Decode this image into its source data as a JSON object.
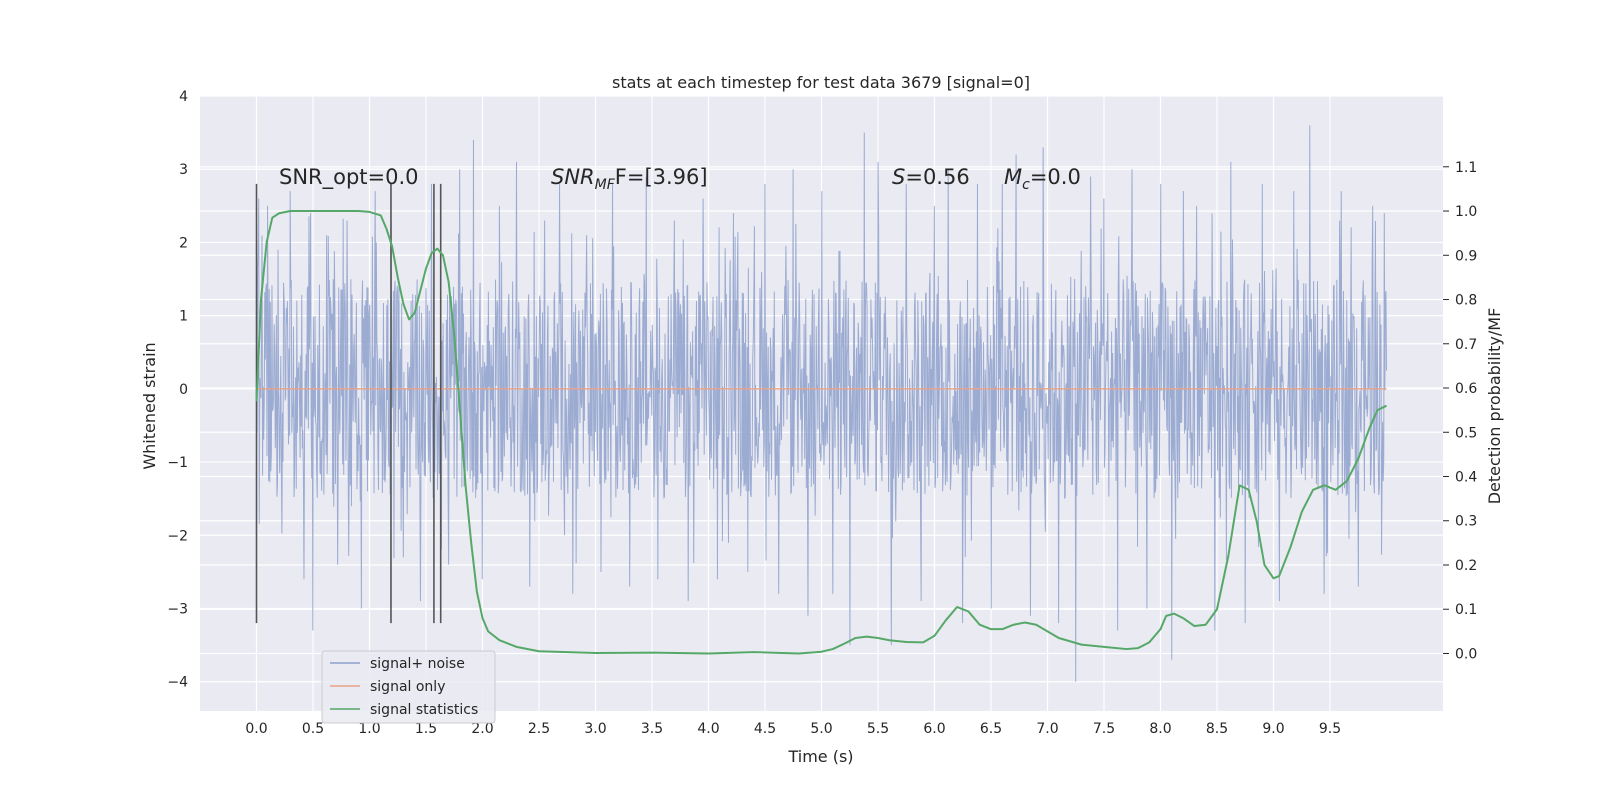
{
  "chart_data": {
    "type": "line",
    "title": "stats at each timestep for test data 3679 [signal=0]",
    "xlabel": "Time (s)",
    "ylabel": "Whitened strain",
    "y2label": "Detection probability/MF",
    "xlim": [
      -0.5,
      10.5
    ],
    "ylim": [
      -4.4,
      4.0
    ],
    "y2lim": [
      -0.13,
      1.26
    ],
    "x_ticks": [
      0.0,
      0.5,
      1.0,
      1.5,
      2.0,
      2.5,
      3.0,
      3.5,
      4.0,
      4.5,
      5.0,
      5.5,
      6.0,
      6.5,
      7.0,
      7.5,
      8.0,
      8.5,
      9.0,
      9.5
    ],
    "x_tick_labels": [
      "0.0",
      "0.5",
      "1.0",
      "1.5",
      "2.0",
      "2.5",
      "3.0",
      "3.5",
      "4.0",
      "4.5",
      "5.0",
      "5.5",
      "6.0",
      "6.5",
      "7.0",
      "7.5",
      "8.0",
      "8.5",
      "9.0",
      "9.5"
    ],
    "y_ticks": [
      4,
      3,
      2,
      1,
      0,
      -1,
      -2,
      -3,
      -4
    ],
    "y_tick_labels": [
      "4",
      "3",
      "2",
      "1",
      "0",
      "−1",
      "−2",
      "−3",
      "−4"
    ],
    "y2_ticks": [
      1.1,
      1.0,
      0.9,
      0.8,
      0.7,
      0.6,
      0.5,
      0.4,
      0.3,
      0.2,
      0.1,
      0.0
    ],
    "y2_tick_labels": [
      "1.1",
      "1.0",
      "0.9",
      "0.8",
      "0.7",
      "0.6",
      "0.5",
      "0.4",
      "0.3",
      "0.2",
      "0.1",
      "0.0"
    ],
    "grid": true,
    "legend_position": "lower-left",
    "annotations": {
      "snr_opt": "SNR_opt=0.0",
      "snr_mf_main": "SNR",
      "snr_mf_sub": "MF",
      "snr_mf_rest": "F=[3.96]",
      "s_main": "S",
      "s_rest": "=0.56",
      "mc_main": "M",
      "mc_sub": "c",
      "mc_rest": "=0.0"
    },
    "series": [
      {
        "name": "signal+ noise",
        "color": "#8da0cb",
        "axis": "left",
        "x_range": [
          0.0,
          10.0
        ],
        "points": 2048,
        "core_band": [
          -1.5,
          1.5
        ],
        "spike_peaks": [
          [
            0.02,
            2.6
          ],
          [
            0.1,
            2.5
          ],
          [
            0.19,
            1.9
          ],
          [
            0.3,
            2.7
          ],
          [
            0.42,
            -2.6
          ],
          [
            0.48,
            2.4
          ],
          [
            0.5,
            -3.3
          ],
          [
            0.62,
            2.1
          ],
          [
            0.72,
            -2.4
          ],
          [
            0.8,
            2.3
          ],
          [
            0.93,
            -3.0
          ],
          [
            1.05,
            2.7
          ],
          [
            1.19,
            2.3
          ],
          [
            1.3,
            -2.3
          ],
          [
            1.45,
            -2.9
          ],
          [
            1.55,
            2.8
          ],
          [
            1.7,
            -2.4
          ],
          [
            1.8,
            3.0
          ],
          [
            1.92,
            3.4
          ],
          [
            2.0,
            -2.6
          ],
          [
            2.15,
            2.5
          ],
          [
            2.3,
            3.1
          ],
          [
            2.42,
            -2.7
          ],
          [
            2.55,
            2.3
          ],
          [
            2.68,
            2.8
          ],
          [
            2.8,
            -2.8
          ],
          [
            2.92,
            2.1
          ],
          [
            3.05,
            -2.5
          ],
          [
            3.15,
            2.8
          ],
          [
            3.3,
            -2.7
          ],
          [
            3.45,
            2.9
          ],
          [
            3.55,
            -2.6
          ],
          [
            3.7,
            2.3
          ],
          [
            3.82,
            -2.9
          ],
          [
            3.95,
            2.6
          ],
          [
            4.08,
            -2.6
          ],
          [
            4.22,
            2.4
          ],
          [
            4.35,
            -2.5
          ],
          [
            4.5,
            2.8
          ],
          [
            4.62,
            -2.8
          ],
          [
            4.75,
            3.0
          ],
          [
            4.88,
            -3.1
          ],
          [
            5.0,
            2.7
          ],
          [
            5.1,
            -2.8
          ],
          [
            5.25,
            -3.5
          ],
          [
            5.38,
            3.5
          ],
          [
            5.5,
            3.1
          ],
          [
            5.62,
            -3.5
          ],
          [
            5.75,
            2.8
          ],
          [
            5.88,
            -2.9
          ],
          [
            6.0,
            2.5
          ],
          [
            6.12,
            3.0
          ],
          [
            6.25,
            -3.2
          ],
          [
            6.38,
            2.8
          ],
          [
            6.5,
            -3.0
          ],
          [
            6.6,
            2.8
          ],
          [
            6.72,
            3.2
          ],
          [
            6.85,
            -3.1
          ],
          [
            6.96,
            3.3
          ],
          [
            7.1,
            -3.2
          ],
          [
            7.25,
            -4.0
          ],
          [
            7.38,
            2.9
          ],
          [
            7.5,
            2.6
          ],
          [
            7.62,
            -3.3
          ],
          [
            7.75,
            3.0
          ],
          [
            7.88,
            -3.0
          ],
          [
            8.0,
            2.8
          ],
          [
            8.1,
            -3.7
          ],
          [
            8.2,
            2.7
          ],
          [
            8.32,
            2.5
          ],
          [
            8.48,
            -3.3
          ],
          [
            8.62,
            3.1
          ],
          [
            8.75,
            -3.2
          ],
          [
            8.9,
            2.8
          ],
          [
            9.05,
            -2.9
          ],
          [
            9.18,
            2.7
          ],
          [
            9.32,
            3.6
          ],
          [
            9.45,
            -2.8
          ],
          [
            9.6,
            2.7
          ],
          [
            9.75,
            -2.7
          ],
          [
            9.88,
            2.5
          ],
          [
            9.98,
            2.4
          ]
        ]
      },
      {
        "name": "signal only",
        "color": "#e9a287",
        "axis": "left",
        "x": [
          0.0,
          10.0
        ],
        "y": [
          0.0,
          0.0
        ]
      },
      {
        "name": "signal statistics",
        "color": "#55a868",
        "axis": "right",
        "points": [
          [
            0.0,
            0.57
          ],
          [
            0.04,
            0.8
          ],
          [
            0.09,
            0.93
          ],
          [
            0.14,
            0.985
          ],
          [
            0.2,
            0.995
          ],
          [
            0.3,
            1.0
          ],
          [
            0.5,
            1.0
          ],
          [
            0.7,
            1.0
          ],
          [
            0.9,
            1.0
          ],
          [
            1.0,
            0.998
          ],
          [
            1.1,
            0.99
          ],
          [
            1.15,
            0.96
          ],
          [
            1.2,
            0.92
          ],
          [
            1.25,
            0.85
          ],
          [
            1.3,
            0.79
          ],
          [
            1.35,
            0.755
          ],
          [
            1.4,
            0.77
          ],
          [
            1.45,
            0.82
          ],
          [
            1.5,
            0.87
          ],
          [
            1.55,
            0.905
          ],
          [
            1.6,
            0.915
          ],
          [
            1.65,
            0.9
          ],
          [
            1.7,
            0.84
          ],
          [
            1.75,
            0.72
          ],
          [
            1.8,
            0.55
          ],
          [
            1.85,
            0.38
          ],
          [
            1.9,
            0.25
          ],
          [
            1.95,
            0.14
          ],
          [
            2.0,
            0.08
          ],
          [
            2.05,
            0.05
          ],
          [
            2.15,
            0.03
          ],
          [
            2.3,
            0.015
          ],
          [
            2.5,
            0.005
          ],
          [
            3.0,
            0.001
          ],
          [
            3.5,
            0.002
          ],
          [
            4.0,
            0.0
          ],
          [
            4.4,
            0.003
          ],
          [
            4.8,
            0.0
          ],
          [
            5.0,
            0.004
          ],
          [
            5.1,
            0.01
          ],
          [
            5.2,
            0.022
          ],
          [
            5.3,
            0.035
          ],
          [
            5.4,
            0.038
          ],
          [
            5.5,
            0.035
          ],
          [
            5.6,
            0.03
          ],
          [
            5.75,
            0.026
          ],
          [
            5.9,
            0.025
          ],
          [
            6.0,
            0.04
          ],
          [
            6.1,
            0.075
          ],
          [
            6.2,
            0.105
          ],
          [
            6.3,
            0.095
          ],
          [
            6.4,
            0.065
          ],
          [
            6.5,
            0.055
          ],
          [
            6.6,
            0.055
          ],
          [
            6.7,
            0.065
          ],
          [
            6.8,
            0.07
          ],
          [
            6.9,
            0.065
          ],
          [
            7.0,
            0.05
          ],
          [
            7.1,
            0.035
          ],
          [
            7.3,
            0.02
          ],
          [
            7.5,
            0.015
          ],
          [
            7.7,
            0.01
          ],
          [
            7.8,
            0.012
          ],
          [
            7.9,
            0.025
          ],
          [
            8.0,
            0.055
          ],
          [
            8.05,
            0.085
          ],
          [
            8.12,
            0.09
          ],
          [
            8.2,
            0.08
          ],
          [
            8.3,
            0.062
          ],
          [
            8.4,
            0.065
          ],
          [
            8.5,
            0.1
          ],
          [
            8.6,
            0.22
          ],
          [
            8.7,
            0.38
          ],
          [
            8.78,
            0.37
          ],
          [
            8.85,
            0.3
          ],
          [
            8.92,
            0.2
          ],
          [
            9.0,
            0.17
          ],
          [
            9.05,
            0.175
          ],
          [
            9.15,
            0.24
          ],
          [
            9.25,
            0.32
          ],
          [
            9.35,
            0.37
          ],
          [
            9.45,
            0.38
          ],
          [
            9.55,
            0.37
          ],
          [
            9.65,
            0.39
          ],
          [
            9.75,
            0.44
          ],
          [
            9.85,
            0.51
          ],
          [
            9.92,
            0.55
          ],
          [
            10.0,
            0.56
          ]
        ]
      }
    ],
    "event_markers": {
      "color": "#555555",
      "x": [
        0.0,
        1.19,
        1.57,
        1.63
      ],
      "y_range": [
        -3.2,
        2.8
      ]
    }
  }
}
